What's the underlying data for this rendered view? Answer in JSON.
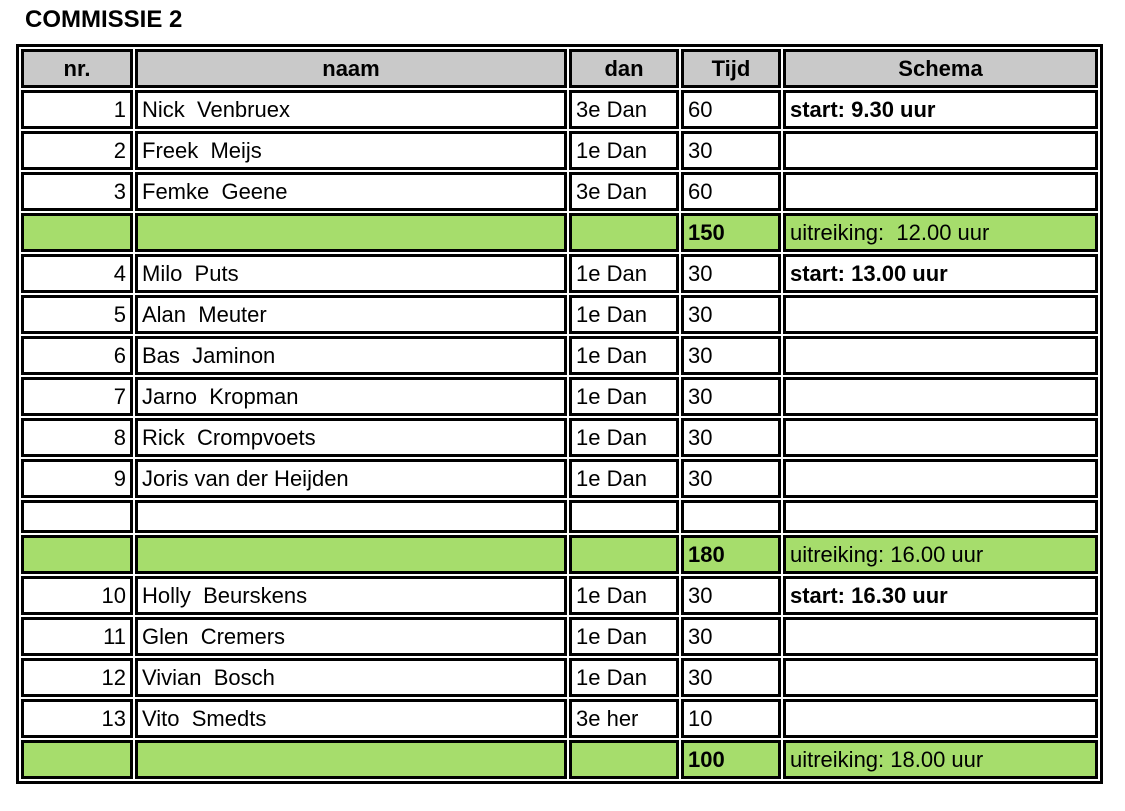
{
  "title": "COMMISSIE 2",
  "colors": {
    "header_bg": "#c9c9c9",
    "highlight_green": "#a6dd6c",
    "border": "#000000",
    "text": "#000000",
    "page_bg": "#ffffff"
  },
  "table": {
    "columns": [
      "nr.",
      "naam",
      "dan",
      "Tijd",
      "Schema"
    ],
    "rows": [
      {
        "nr": "1",
        "naam": "Nick  Venbruex",
        "dan": "3e Dan",
        "tijd": "60",
        "schema": "start: 9.30 uur",
        "kind": "entry",
        "schema_highlight": true
      },
      {
        "nr": "2",
        "naam": "Freek  Meijs",
        "dan": "1e Dan",
        "tijd": "30",
        "schema": "",
        "kind": "entry",
        "schema_highlight": false
      },
      {
        "nr": "3",
        "naam": "Femke  Geene",
        "dan": "3e Dan",
        "tijd": "60",
        "schema": "",
        "kind": "entry",
        "schema_highlight": false
      },
      {
        "nr": "",
        "naam": "",
        "dan": "",
        "tijd": "150",
        "schema": "uitreiking:  12.00 uur",
        "kind": "total",
        "schema_highlight": false
      },
      {
        "nr": "4",
        "naam": "Milo  Puts",
        "dan": "1e Dan",
        "tijd": "30",
        "schema": "start: 13.00 uur",
        "kind": "entry",
        "schema_highlight": true
      },
      {
        "nr": "5",
        "naam": "Alan  Meuter",
        "dan": "1e Dan",
        "tijd": "30",
        "schema": "",
        "kind": "entry",
        "schema_highlight": false
      },
      {
        "nr": "6",
        "naam": "Bas  Jaminon",
        "dan": "1e Dan",
        "tijd": "30",
        "schema": "",
        "kind": "entry",
        "schema_highlight": false
      },
      {
        "nr": "7",
        "naam": "Jarno  Kropman",
        "dan": "1e Dan",
        "tijd": "30",
        "schema": "",
        "kind": "entry",
        "schema_highlight": false
      },
      {
        "nr": "8",
        "naam": "Rick  Crompvoets",
        "dan": "1e Dan",
        "tijd": "30",
        "schema": "",
        "kind": "entry",
        "schema_highlight": false
      },
      {
        "nr": "9",
        "naam": "Joris van der Heijden",
        "dan": "1e Dan",
        "tijd": "30",
        "schema": "",
        "kind": "entry",
        "schema_highlight": false
      },
      {
        "nr": "",
        "naam": "",
        "dan": "",
        "tijd": "",
        "schema": "",
        "kind": "empty",
        "schema_highlight": false
      },
      {
        "nr": "",
        "naam": "",
        "dan": "",
        "tijd": "180",
        "schema": "uitreiking: 16.00 uur",
        "kind": "total",
        "schema_highlight": false
      },
      {
        "nr": "10",
        "naam": "Holly  Beurskens",
        "dan": "1e Dan",
        "tijd": "30",
        "schema": "start: 16.30 uur",
        "kind": "entry",
        "schema_highlight": true
      },
      {
        "nr": "11",
        "naam": "Glen  Cremers",
        "dan": "1e Dan",
        "tijd": "30",
        "schema": "",
        "kind": "entry",
        "schema_highlight": false
      },
      {
        "nr": "12",
        "naam": "Vivian  Bosch",
        "dan": "1e Dan",
        "tijd": "30",
        "schema": "",
        "kind": "entry",
        "schema_highlight": false
      },
      {
        "nr": "13",
        "naam": "Vito  Smedts",
        "dan": "3e her",
        "tijd": "10",
        "schema": "",
        "kind": "entry",
        "schema_highlight": false
      },
      {
        "nr": "",
        "naam": "",
        "dan": "",
        "tijd": "100",
        "schema": "uitreiking: 18.00 uur",
        "kind": "total",
        "schema_highlight": false
      }
    ]
  }
}
